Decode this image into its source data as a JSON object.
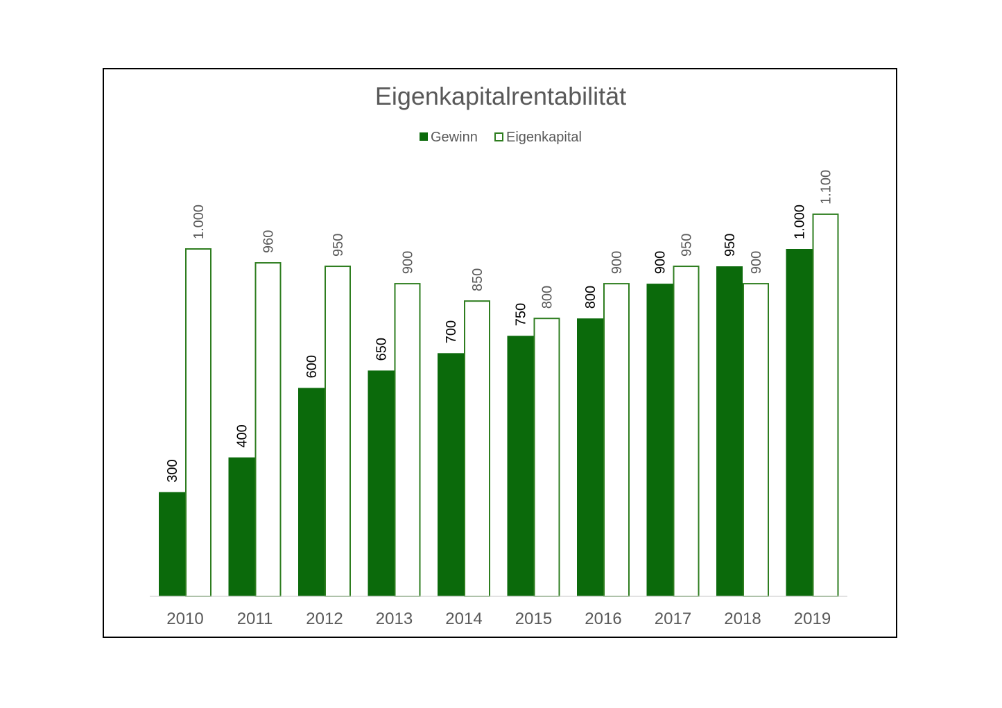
{
  "chart_data": {
    "type": "bar",
    "title": "Eigenkapitalrentabilität",
    "categories": [
      "2010",
      "2011",
      "2012",
      "2013",
      "2014",
      "2015",
      "2016",
      "2017",
      "2018",
      "2019"
    ],
    "series": [
      {
        "name": "Gewinn",
        "values": [
          300,
          400,
          600,
          650,
          700,
          750,
          800,
          900,
          950,
          1000
        ],
        "labels": [
          "300",
          "400",
          "600",
          "650",
          "700",
          "750",
          "800",
          "900",
          "950",
          "1.000"
        ],
        "color": "#0b6a0b",
        "style": "filled"
      },
      {
        "name": "Eigenkapital",
        "values": [
          1000,
          960,
          950,
          900,
          850,
          800,
          900,
          950,
          900,
          1100
        ],
        "labels": [
          "1.000",
          "960",
          "950",
          "900",
          "850",
          "800",
          "900",
          "950",
          "900",
          "1.100"
        ],
        "color": "#2e7d1f",
        "style": "outline"
      }
    ],
    "ylim": [
      0,
      1100
    ],
    "grid": false,
    "legend_position": "top-center",
    "data_labels": "rotated-vertical",
    "axis_color": "#d9d9d9"
  }
}
